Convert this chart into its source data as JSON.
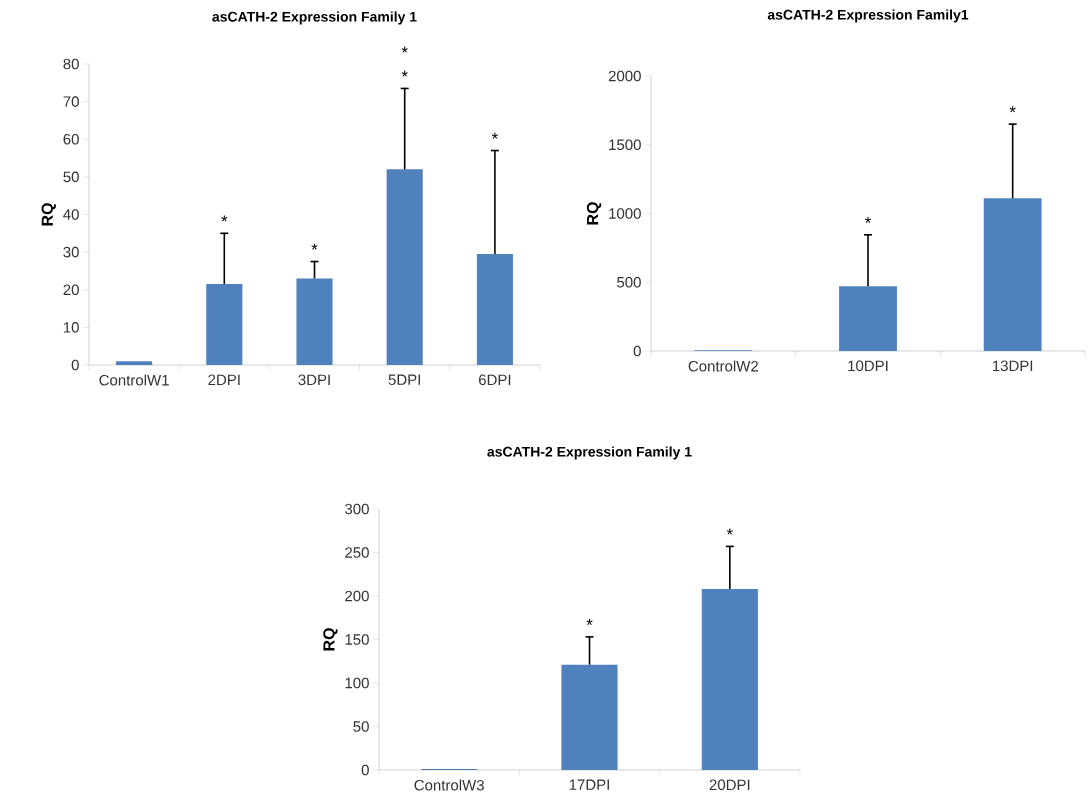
{
  "chart_data": [
    {
      "type": "bar",
      "title": "asCATH-2 Expression Family 1",
      "ylabel": "RQ",
      "categories": [
        "ControlW1",
        "2DPI",
        "3DPI",
        "5DPI",
        "6DPI"
      ],
      "values": [
        1,
        21.5,
        23,
        52,
        29.5
      ],
      "errors": [
        null,
        [
          21.5,
          35
        ],
        [
          23,
          27.5
        ],
        [
          52,
          73.5
        ],
        [
          29.5,
          57
        ]
      ],
      "color": "#4f81bd",
      "ylim": [
        0,
        80
      ],
      "yticks": [
        0,
        10,
        20,
        30,
        40,
        50,
        60,
        70,
        80
      ],
      "annotations": [
        {
          "text": "*",
          "x": "2DPI",
          "y": 35
        },
        {
          "text": "*",
          "x": "3DPI",
          "y": 27.5
        },
        {
          "text": "*",
          "x": "5DPI",
          "y": 73.5
        },
        {
          "text": "*",
          "x": "5DPI",
          "y": 73.5
        },
        {
          "text": "*",
          "x": "6DPI",
          "y": 57
        }
      ]
    },
    {
      "type": "bar",
      "title": "asCATH-2 Expression Family1",
      "ylabel": "RQ",
      "categories": [
        "ControlW2",
        "10DPI",
        "13DPI"
      ],
      "values": [
        5,
        470,
        1110
      ],
      "errors": [
        null,
        [
          470,
          845
        ],
        [
          1110,
          1650
        ]
      ],
      "color": "#4f81bd",
      "ylim": [
        0,
        2000
      ],
      "yticks": [
        0,
        500,
        1000,
        1500,
        2000
      ],
      "annotations": [
        {
          "text": "*",
          "x": "10DPI",
          "y": 845
        },
        {
          "text": "*",
          "x": "13DPI",
          "y": 1650
        }
      ]
    },
    {
      "type": "bar",
      "title": "asCATH-2 Expression Family 1",
      "ylabel": "RQ",
      "categories": [
        "ControlW3",
        "17DPI",
        "20DPI"
      ],
      "values": [
        1,
        121,
        208
      ],
      "errors": [
        null,
        [
          121,
          153
        ],
        [
          208,
          257
        ]
      ],
      "color": "#4f81bd",
      "ylim": [
        0,
        300
      ],
      "yticks": [
        0,
        50,
        100,
        150,
        200,
        250,
        300
      ],
      "annotations": [
        {
          "text": "*",
          "x": "17DPI",
          "y": 153
        },
        {
          "text": "*",
          "x": "20DPI",
          "y": 257
        }
      ]
    }
  ]
}
